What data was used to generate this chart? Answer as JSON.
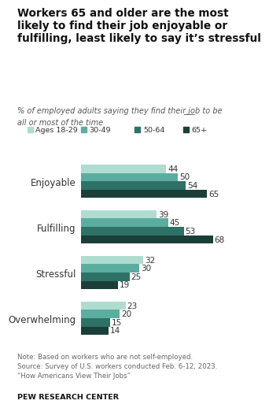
{
  "title": "Workers 65 and older are the most\nlikely to find their job enjoyable or\nfulfilling, least likely to say it’s stressful",
  "subtitle_part1": "% of employed adults saying they find their job to be ",
  "subtitle_underline": "___",
  "subtitle_part2": "\nall or most of the time",
  "categories": [
    "Enjoyable",
    "Fulfilling",
    "Stressful",
    "Overwhelming"
  ],
  "age_groups": [
    "Ages 18-29",
    "30-49",
    "50-64",
    "65+"
  ],
  "colors": [
    "#aeddd0",
    "#5bada0",
    "#2d7167",
    "#1b3f38"
  ],
  "values": {
    "Enjoyable": [
      44,
      50,
      54,
      65
    ],
    "Fulfilling": [
      39,
      45,
      53,
      68
    ],
    "Stressful": [
      32,
      30,
      25,
      19
    ],
    "Overwhelming": [
      23,
      20,
      15,
      14
    ]
  },
  "note": "Note: Based on workers who are not self-employed.\nSource: Survey of U.S. workers conducted Feb. 6-12, 2023.\n“How Americans View Their Jobs”",
  "source_label": "PEW RESEARCH CENTER",
  "xlim": [
    0,
    78
  ],
  "background_color": "#ffffff"
}
